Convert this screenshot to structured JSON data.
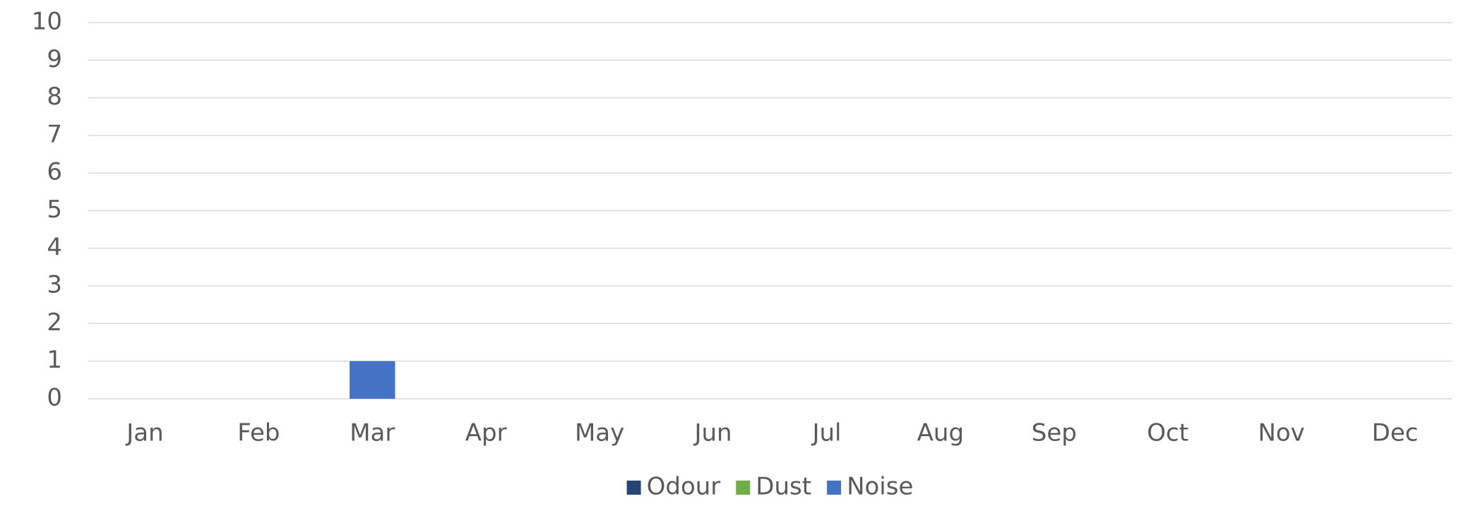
{
  "chart_data": {
    "type": "bar",
    "stacked": true,
    "categories": [
      "Jan",
      "Feb",
      "Mar",
      "Apr",
      "May",
      "Jun",
      "Jul",
      "Aug",
      "Sep",
      "Oct",
      "Nov",
      "Dec"
    ],
    "series": [
      {
        "name": "Odour",
        "color": "#264478",
        "values": [
          0,
          0,
          0,
          0,
          0,
          0,
          0,
          0,
          0,
          0,
          0,
          0
        ]
      },
      {
        "name": "Dust",
        "color": "#70ad47",
        "values": [
          0,
          0,
          0,
          0,
          0,
          0,
          0,
          0,
          0,
          0,
          0,
          0
        ]
      },
      {
        "name": "Noise",
        "color": "#4472c4",
        "values": [
          0,
          0,
          1,
          0,
          0,
          0,
          0,
          0,
          0,
          0,
          0,
          0
        ]
      }
    ],
    "ylim": [
      0,
      10
    ],
    "yticks": [
      0,
      1,
      2,
      3,
      4,
      5,
      6,
      7,
      8,
      9,
      10
    ],
    "grid": true,
    "legend": "bottom"
  }
}
